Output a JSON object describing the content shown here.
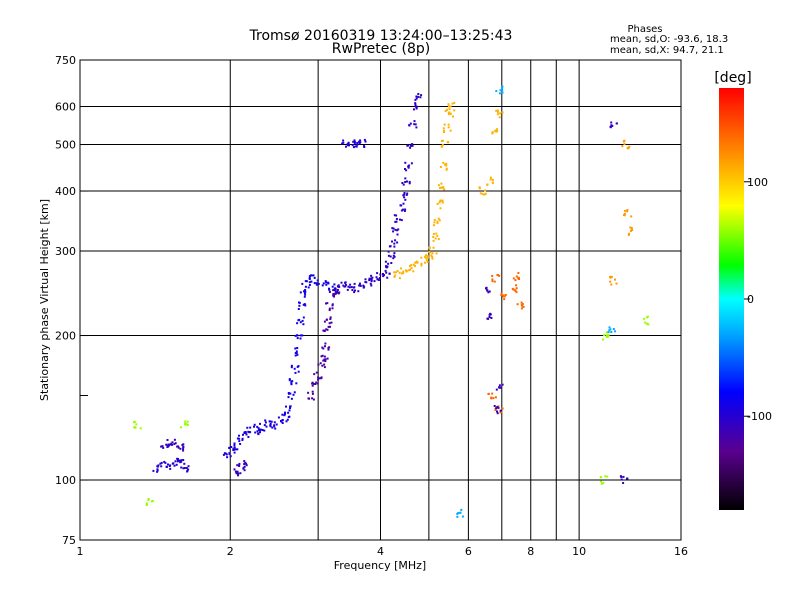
{
  "chart_data": {
    "type": "scatter",
    "title": "Tromsø 20160319 13:24:00–13:25:43",
    "subtitle": "RwPretec (8p)",
    "xlabel": "Frequency [MHz]",
    "ylabel": "Stationary phase Virtual Height [km]",
    "x_scale": "log",
    "y_scale": "log",
    "xlim": [
      1,
      16
    ],
    "ylim": [
      75,
      750
    ],
    "x_ticks": [
      1,
      2,
      4,
      6,
      8,
      10,
      16
    ],
    "x_tick_labels": [
      "1",
      "2",
      "4",
      "6",
      "8",
      "10",
      "16"
    ],
    "x_minor_ticks": [
      3,
      5,
      7,
      9
    ],
    "y_ticks": [
      75,
      100,
      200,
      300,
      400,
      500,
      600,
      750
    ],
    "y_tick_labels": [
      "75",
      "100",
      "200",
      "300",
      "400",
      "500",
      "600",
      "750"
    ],
    "y_minor_ticks": [
      150
    ],
    "grid": true,
    "stats": {
      "heading": "Phases",
      "line_o": "mean, sd,O: -93.6, 18.3",
      "line_x": "mean, sd,X:  94.7, 21.1"
    },
    "colorbar": {
      "label": "[deg]",
      "range": [
        -180,
        180
      ],
      "ticks": [
        100,
        0,
        -100
      ],
      "tick_labels": [
        "100",
        "0",
        "-100"
      ],
      "colormap": "rainbow (black-purple-blue-cyan-green-yellow-red)"
    },
    "traces": [
      {
        "phase": -100,
        "points": [
          [
            1.42,
            106
          ],
          [
            1.47,
            108
          ],
          [
            1.52,
            107
          ],
          [
            1.56,
            109
          ],
          [
            1.6,
            108
          ],
          [
            1.64,
            106
          ]
        ]
      },
      {
        "phase": -110,
        "points": [
          [
            1.48,
            118
          ],
          [
            1.52,
            120
          ],
          [
            1.56,
            119
          ],
          [
            1.6,
            117
          ]
        ]
      },
      {
        "phase": -95,
        "points": [
          [
            1.97,
            113
          ],
          [
            2.02,
            115
          ],
          [
            2.06,
            118
          ],
          [
            2.1,
            122
          ],
          [
            2.14,
            125
          ],
          [
            2.2,
            128
          ],
          [
            2.26,
            127
          ],
          [
            2.32,
            129
          ],
          [
            2.38,
            131
          ],
          [
            2.45,
            130
          ],
          [
            2.52,
            133
          ]
        ]
      },
      {
        "phase": -110,
        "points": [
          [
            2.06,
            104
          ],
          [
            2.1,
            106
          ],
          [
            2.12,
            108
          ]
        ]
      },
      {
        "phase": -90,
        "points": [
          [
            2.58,
            135
          ],
          [
            2.62,
            140
          ],
          [
            2.66,
            150
          ],
          [
            2.68,
            160
          ],
          [
            2.7,
            170
          ],
          [
            2.72,
            185
          ],
          [
            2.74,
            200
          ],
          [
            2.76,
            215
          ],
          [
            2.78,
            230
          ],
          [
            2.8,
            245
          ],
          [
            2.84,
            255
          ],
          [
            2.9,
            262
          ],
          [
            3.0,
            260
          ],
          [
            3.1,
            255
          ],
          [
            3.2,
            252
          ]
        ]
      },
      {
        "phase": -120,
        "points": [
          [
            2.9,
            150
          ],
          [
            2.95,
            158
          ],
          [
            3.0,
            165
          ],
          [
            3.04,
            175
          ],
          [
            3.08,
            180
          ],
          [
            3.1,
            190
          ],
          [
            3.12,
            205
          ],
          [
            3.14,
            215
          ],
          [
            3.16,
            230
          ],
          [
            3.2,
            242
          ],
          [
            3.25,
            248
          ]
        ]
      },
      {
        "phase": -105,
        "points": [
          [
            3.3,
            250
          ],
          [
            3.4,
            255
          ],
          [
            3.5,
            253
          ],
          [
            3.6,
            250
          ],
          [
            3.7,
            255
          ],
          [
            3.8,
            258
          ],
          [
            3.9,
            262
          ],
          [
            4.0,
            265
          ],
          [
            4.1,
            268
          ],
          [
            4.15,
            280
          ],
          [
            4.2,
            295
          ],
          [
            4.25,
            310
          ],
          [
            4.3,
            330
          ],
          [
            4.35,
            350
          ],
          [
            4.4,
            370
          ],
          [
            4.45,
            390
          ],
          [
            4.5,
            420
          ],
          [
            4.55,
            450
          ],
          [
            4.6,
            500
          ],
          [
            4.65,
            550
          ],
          [
            4.7,
            600
          ],
          [
            4.75,
            630
          ]
        ]
      },
      {
        "phase": -100,
        "points": [
          [
            3.4,
            500
          ],
          [
            3.5,
            505
          ],
          [
            3.6,
            502
          ],
          [
            3.7,
            503
          ]
        ]
      },
      {
        "phase": 110,
        "points": [
          [
            4.3,
            268
          ],
          [
            4.45,
            272
          ],
          [
            4.6,
            276
          ],
          [
            4.75,
            283
          ],
          [
            4.9,
            288
          ],
          [
            5.0,
            292
          ],
          [
            5.1,
            300
          ],
          [
            5.15,
            320
          ],
          [
            5.2,
            345
          ],
          [
            5.25,
            375
          ],
          [
            5.3,
            410
          ],
          [
            5.35,
            450
          ],
          [
            5.4,
            500
          ],
          [
            5.45,
            540
          ],
          [
            5.5,
            580
          ],
          [
            5.55,
            600
          ]
        ]
      },
      {
        "phase": 110,
        "points": [
          [
            6.4,
            400
          ],
          [
            6.6,
            420
          ],
          [
            6.8,
            530
          ],
          [
            6.9,
            580
          ]
        ]
      },
      {
        "phase": 140,
        "points": [
          [
            6.8,
            263
          ],
          [
            7.0,
            240
          ],
          [
            7.4,
            250
          ],
          [
            7.5,
            265
          ],
          [
            7.6,
            230
          ],
          [
            6.7,
            150
          ],
          [
            6.9,
            140
          ]
        ]
      },
      {
        "phase": -110,
        "points": [
          [
            6.5,
            250
          ],
          [
            6.6,
            220
          ],
          [
            6.9,
            140
          ],
          [
            6.9,
            155
          ],
          [
            11.7,
            550
          ],
          [
            12.3,
            100
          ]
        ]
      },
      {
        "phase": 60,
        "points": [
          [
            1.3,
            130
          ],
          [
            1.38,
            90
          ],
          [
            1.62,
            130
          ],
          [
            11.2,
            100
          ],
          [
            13.6,
            215
          ],
          [
            11.3,
            200
          ]
        ]
      },
      {
        "phase": 120,
        "points": [
          [
            12.4,
            500
          ],
          [
            12.5,
            360
          ],
          [
            12.6,
            330
          ],
          [
            11.7,
            260
          ]
        ]
      },
      {
        "phase": -30,
        "points": [
          [
            5.8,
            85
          ],
          [
            6.9,
            650
          ],
          [
            11.6,
            205
          ]
        ]
      }
    ]
  }
}
